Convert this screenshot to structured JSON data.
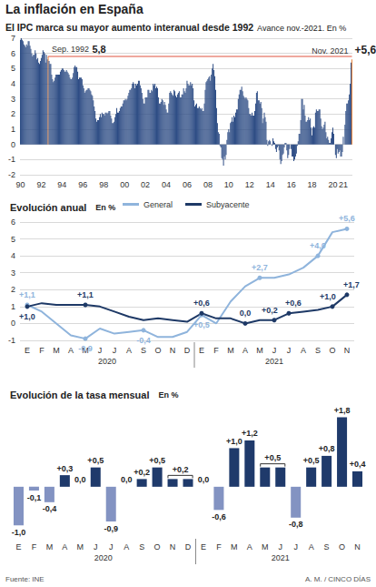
{
  "header": {
    "title": "La inflación en España"
  },
  "footer": {
    "source": "Fuente: INE",
    "credit": "A. M. / CINCO DÍAS"
  },
  "chart_data": [
    {
      "type": "bar",
      "title": "El IPC marca su mayor aumento interanual desde 1992",
      "subtitle": "Avance nov.-2021. En %",
      "color": "#2e4d85",
      "grid": true,
      "ylim": [
        -2,
        7
      ],
      "yticks": [
        -2,
        -1,
        0,
        1,
        2,
        3,
        4,
        5,
        6,
        7
      ],
      "categories": [
        "90",
        null,
        null,
        null,
        null,
        null,
        null,
        null,
        null,
        null,
        null,
        null,
        null,
        null,
        null,
        null,
        null,
        null,
        null,
        null,
        null,
        null,
        null,
        null,
        "92",
        null,
        null,
        null,
        null,
        null,
        null,
        null,
        null,
        null,
        null,
        null,
        null,
        null,
        null,
        null,
        null,
        null,
        null,
        null,
        null,
        null,
        null,
        null,
        "94",
        null,
        null,
        null,
        null,
        null,
        null,
        null,
        null,
        null,
        null,
        null,
        null,
        null,
        null,
        null,
        null,
        null,
        null,
        null,
        null,
        null,
        null,
        null,
        "96",
        null,
        null,
        null,
        null,
        null,
        null,
        null,
        null,
        null,
        null,
        null,
        null,
        null,
        null,
        null,
        null,
        null,
        null,
        null,
        null,
        null,
        null,
        null,
        "98",
        null,
        null,
        null,
        null,
        null,
        null,
        null,
        null,
        null,
        null,
        null,
        null,
        null,
        null,
        null,
        null,
        null,
        null,
        null,
        null,
        null,
        null,
        null,
        "00",
        null,
        null,
        null,
        null,
        null,
        null,
        null,
        null,
        null,
        null,
        null,
        null,
        null,
        null,
        null,
        null,
        null,
        null,
        null,
        null,
        null,
        null,
        null,
        "02",
        null,
        null,
        null,
        null,
        null,
        null,
        null,
        null,
        null,
        null,
        null,
        null,
        null,
        null,
        null,
        null,
        null,
        null,
        null,
        null,
        null,
        null,
        null,
        "04",
        null,
        null,
        null,
        null,
        null,
        null,
        null,
        null,
        null,
        null,
        null,
        null,
        null,
        null,
        null,
        null,
        null,
        null,
        null,
        null,
        null,
        null,
        null,
        "06",
        null,
        null,
        null,
        null,
        null,
        null,
        null,
        null,
        null,
        null,
        null,
        null,
        null,
        null,
        null,
        null,
        null,
        null,
        null,
        null,
        null,
        null,
        null,
        "08",
        null,
        null,
        null,
        null,
        null,
        null,
        null,
        null,
        null,
        null,
        null,
        null,
        null,
        null,
        null,
        null,
        null,
        null,
        null,
        null,
        null,
        null,
        null,
        "10",
        null,
        null,
        null,
        null,
        null,
        null,
        null,
        null,
        null,
        null,
        null,
        null,
        null,
        null,
        null,
        null,
        null,
        null,
        null,
        null,
        null,
        null,
        null,
        "12",
        null,
        null,
        null,
        null,
        null,
        null,
        null,
        null,
        null,
        null,
        null,
        null,
        null,
        null,
        null,
        null,
        null,
        null,
        null,
        null,
        null,
        null,
        null,
        "14",
        null,
        null,
        null,
        null,
        null,
        null,
        null,
        null,
        null,
        null,
        null,
        null,
        null,
        null,
        null,
        null,
        null,
        null,
        null,
        null,
        null,
        null,
        null,
        "16",
        null,
        null,
        null,
        null,
        null,
        null,
        null,
        null,
        null,
        null,
        null,
        null,
        null,
        null,
        null,
        null,
        null,
        null,
        null,
        null,
        null,
        null,
        null,
        "18",
        null,
        null,
        null,
        null,
        null,
        null,
        null,
        null,
        null,
        null,
        null,
        null,
        null,
        null,
        null,
        null,
        null,
        null,
        null,
        null,
        null,
        null,
        null,
        "20",
        null,
        null,
        null,
        null,
        null,
        null,
        null,
        null,
        null,
        null,
        null,
        "21",
        null,
        null,
        null,
        null,
        null,
        null,
        null,
        null,
        null,
        null
      ],
      "values": [
        6.9,
        7.0,
        6.9,
        6.8,
        6.6,
        6.5,
        6.4,
        6.6,
        6.5,
        6.8,
        6.8,
        6.5,
        6.3,
        6.0,
        5.8,
        5.9,
        5.9,
        6.2,
        6.0,
        5.6,
        5.7,
        5.4,
        5.3,
        5.5,
        5.7,
        5.9,
        6.2,
        6.1,
        6.0,
        5.4,
        5.9,
        5.6,
        5.8,
        5.5,
        5.3,
        5.3,
        4.6,
        4.3,
        4.1,
        4.2,
        4.4,
        4.6,
        4.6,
        4.6,
        4.6,
        4.6,
        4.8,
        4.9,
        5.0,
        5.0,
        4.9,
        4.8,
        4.8,
        4.9,
        4.8,
        4.7,
        4.6,
        4.4,
        4.3,
        4.3,
        4.4,
        4.7,
        5.1,
        5.2,
        5.1,
        5.1,
        4.8,
        4.3,
        4.4,
        4.4,
        4.4,
        4.3,
        3.9,
        3.7,
        3.4,
        3.5,
        3.6,
        3.6,
        3.7,
        3.7,
        3.6,
        3.5,
        3.3,
        3.2,
        2.9,
        2.5,
        2.2,
        1.7,
        1.5,
        1.6,
        1.6,
        1.8,
        2.0,
        1.8,
        2.1,
        2.0,
        2.0,
        1.9,
        2.1,
        2.1,
        2.0,
        2.1,
        2.2,
        2.2,
        1.9,
        1.7,
        1.4,
        1.4,
        1.5,
        1.8,
        2.0,
        2.4,
        2.1,
        2.1,
        2.2,
        2.4,
        2.5,
        2.5,
        2.7,
        2.9,
        2.9,
        3.0,
        2.9,
        3.0,
        3.2,
        3.4,
        3.6,
        3.6,
        3.7,
        4.0,
        4.1,
        4.0,
        3.7,
        4.0,
        3.9,
        4.0,
        4.2,
        4.2,
        3.9,
        3.7,
        3.4,
        3.0,
        2.7,
        2.7,
        3.1,
        3.1,
        3.1,
        3.6,
        3.6,
        3.4,
        3.4,
        3.6,
        3.5,
        4.0,
        3.9,
        4.0,
        3.7,
        3.8,
        3.7,
        3.1,
        2.7,
        2.7,
        2.8,
        3.0,
        2.9,
        2.6,
        2.8,
        2.6,
        2.3,
        2.1,
        2.1,
        2.7,
        3.4,
        3.5,
        3.4,
        3.3,
        3.2,
        3.6,
        3.5,
        3.2,
        3.1,
        3.3,
        3.4,
        3.5,
        3.1,
        3.1,
        3.3,
        3.3,
        3.7,
        3.5,
        3.4,
        3.7,
        4.2,
        4.0,
        3.9,
        3.9,
        4.1,
        3.9,
        4.0,
        3.7,
        2.9,
        2.5,
        2.6,
        2.7,
        2.4,
        2.4,
        2.5,
        2.4,
        2.3,
        2.4,
        2.2,
        2.2,
        2.7,
        3.6,
        4.1,
        4.2,
        4.3,
        4.4,
        4.5,
        4.2,
        4.6,
        5.0,
        5.3,
        4.9,
        4.5,
        3.6,
        2.4,
        1.4,
        0.8,
        0.7,
        -0.1,
        -0.2,
        -0.9,
        -1.0,
        -1.4,
        -0.8,
        -1.0,
        -0.7,
        0.3,
        0.8,
        1.0,
        0.8,
        1.4,
        1.5,
        1.8,
        1.5,
        1.9,
        1.8,
        2.1,
        2.3,
        2.3,
        3.0,
        3.3,
        3.6,
        3.6,
        3.8,
        3.5,
        3.2,
        3.1,
        3.0,
        3.1,
        3.0,
        2.9,
        2.4,
        2.0,
        2.0,
        1.9,
        2.1,
        1.9,
        1.9,
        2.2,
        2.7,
        3.4,
        3.5,
        2.9,
        2.9,
        2.7,
        2.8,
        2.4,
        1.4,
        1.7,
        2.1,
        1.8,
        1.5,
        0.3,
        -0.1,
        0.2,
        0.3,
        0.2,
        0.0,
        -0.1,
        0.4,
        0.2,
        0.1,
        -0.3,
        -0.5,
        -0.2,
        -0.1,
        -0.4,
        -1.0,
        -1.3,
        -1.1,
        -0.7,
        -0.6,
        -0.2,
        0.1,
        0.1,
        -0.4,
        -0.9,
        -0.7,
        -0.3,
        0.0,
        -0.3,
        -0.8,
        -0.8,
        -1.1,
        -1.0,
        -0.8,
        -0.6,
        -0.1,
        0.2,
        0.7,
        0.7,
        1.6,
        3.0,
        3.0,
        2.3,
        2.6,
        1.9,
        1.5,
        1.5,
        1.6,
        1.8,
        1.6,
        1.7,
        1.1,
        0.6,
        1.1,
        1.2,
        1.1,
        2.1,
        2.3,
        2.2,
        2.2,
        2.3,
        2.3,
        1.7,
        1.2,
        1.0,
        1.1,
        1.3,
        1.5,
        0.8,
        0.4,
        0.5,
        0.3,
        0.1,
        0.1,
        0.4,
        0.8,
        1.1,
        0.7,
        0.0,
        -0.7,
        -0.9,
        -0.3,
        -0.6,
        -0.5,
        -0.4,
        -0.8,
        -0.8,
        -0.5,
        0.5,
        0.0,
        1.3,
        2.2,
        2.7,
        2.7,
        2.9,
        3.3,
        4.0,
        5.4,
        5.6
      ],
      "annotations": [
        {
          "position": 32,
          "label": "Sep. 1992",
          "value": 5.8,
          "value_label": "5,8",
          "color": "#e8833a"
        },
        {
          "position": 382,
          "label": "Nov. 2021",
          "value": 5.6,
          "value_label": "+5,6",
          "color": "#e8833a"
        }
      ],
      "reference_line": {
        "value": 5.8,
        "from": 32,
        "to": 382,
        "color": "#e0533f"
      }
    },
    {
      "type": "line",
      "title": "Evolución anual",
      "subtitle": "En %",
      "grid": true,
      "legend": "top",
      "data_labels": true,
      "ylim": [
        -1,
        6
      ],
      "yticks": [
        -1,
        0,
        1,
        2,
        3,
        4,
        5,
        6
      ],
      "categories": [
        "E",
        "F",
        "M",
        "A",
        "M",
        "J",
        "J",
        "A",
        "S",
        "O",
        "N",
        "D",
        "E",
        "F",
        "M",
        "A",
        "M",
        "J",
        "J",
        "A",
        "S",
        "O",
        "N"
      ],
      "x_groups": [
        {
          "label": "2020",
          "start": 0,
          "end": 11
        },
        {
          "label": "2021",
          "start": 12,
          "end": 22
        }
      ],
      "series": [
        {
          "name": "General",
          "color": "#8fb4dc",
          "values": [
            1.1,
            0.7,
            0.0,
            -0.7,
            -0.9,
            -0.3,
            -0.6,
            -0.5,
            -0.4,
            -0.8,
            -0.8,
            -0.5,
            0.5,
            0.0,
            1.3,
            2.2,
            2.7,
            2.7,
            2.9,
            3.3,
            4.0,
            5.4,
            5.6
          ],
          "value_labels": [
            "+1,1",
            null,
            null,
            null,
            "-0,9",
            null,
            null,
            null,
            "-0,4",
            null,
            null,
            null,
            "+0,5",
            null,
            null,
            null,
            "+2,7",
            null,
            null,
            null,
            "+4,0",
            null,
            "+5,6"
          ]
        },
        {
          "name": "Subyacente",
          "color": "#1e3966",
          "values": [
            1.0,
            1.2,
            1.1,
            1.1,
            1.1,
            1.0,
            0.7,
            0.4,
            0.2,
            0.3,
            0.2,
            0.1,
            0.6,
            0.3,
            0.3,
            0.0,
            0.2,
            0.2,
            0.6,
            0.7,
            0.8,
            1.0,
            1.7
          ],
          "value_labels": [
            "+1,0",
            null,
            null,
            null,
            "+1,1",
            null,
            null,
            null,
            null,
            null,
            null,
            null,
            "+0,6",
            null,
            null,
            "0,0",
            null,
            "+0,2",
            "+0,6",
            null,
            null,
            "+1,0",
            "+1,7"
          ]
        }
      ]
    },
    {
      "type": "bar",
      "title": "Evolución de la tasa mensual",
      "subtitle": "En %",
      "grid": false,
      "data_labels": true,
      "tick_labels": "x",
      "ylim": [
        -1.3,
        2.0
      ],
      "categories": [
        "E",
        "F",
        "M",
        "A",
        "M",
        "J",
        "J",
        "A",
        "S",
        "O",
        "N",
        "D",
        "E",
        "F",
        "M",
        "A",
        "M",
        "J",
        "J",
        "A",
        "S",
        "O",
        "N"
      ],
      "x_groups": [
        {
          "label": "2020",
          "start": 0,
          "end": 11
        },
        {
          "label": "2021",
          "start": 12,
          "end": 22
        }
      ],
      "values": [
        -1.0,
        -0.1,
        -0.4,
        0.3,
        0.0,
        0.5,
        -0.9,
        0.0,
        0.2,
        0.5,
        0.2,
        0.2,
        0.0,
        -0.6,
        1.0,
        1.2,
        0.5,
        0.5,
        -0.8,
        0.5,
        0.8,
        1.8,
        0.4
      ],
      "value_labels": [
        "-1,0",
        "-0,1",
        "-0,4",
        "+0,3",
        "0,0",
        "+0,5",
        "-0,9",
        "0,0",
        "+0,2",
        "+0,5",
        null,
        null,
        "0,0",
        "-0,6",
        "+1,0",
        "+1,2",
        null,
        null,
        "-0,8",
        "+0,5",
        "+0,8",
        "+1,8",
        "+0,4"
      ],
      "brackets": [
        {
          "from": 10,
          "to": 11,
          "label": "+0,2"
        },
        {
          "from": 16,
          "to": 17,
          "label": "+0,5"
        }
      ],
      "colors": [
        "#8393c2",
        "#8393c2",
        "#8393c2",
        "#1f3a6b",
        "#1f3a6b",
        "#1f3a6b",
        "#8393c2",
        "#1f3a6b",
        "#1f3a6b",
        "#1f3a6b",
        "#1f3a6b",
        "#1f3a6b",
        "#1f3a6b",
        "#8393c2",
        "#1f3a6b",
        "#1f3a6b",
        "#1f3a6b",
        "#1f3a6b",
        "#8393c2",
        "#1f3a6b",
        "#1f3a6b",
        "#1f3a6b",
        "#1f3a6b"
      ]
    }
  ]
}
